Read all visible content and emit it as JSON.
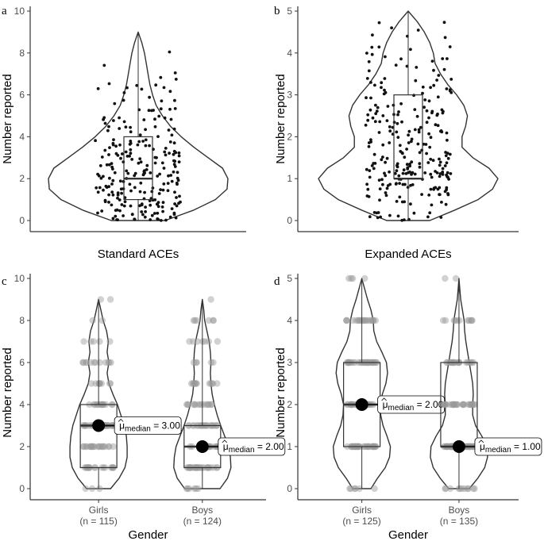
{
  "chart_data": [
    {
      "panel": "a",
      "type": "violin",
      "xlabel": "Standard ACEs",
      "ylabel": "Number reported",
      "ylim": [
        0,
        10
      ],
      "yticks": [
        "0",
        "2",
        "4",
        "6",
        "8",
        "10"
      ],
      "groups": [
        {
          "name": "",
          "n": 240,
          "min": 0,
          "q1": 1,
          "median": 2,
          "q3": 4,
          "max": 9,
          "density": [
            [
              0,
              0.3
            ],
            [
              0.5,
              0.62
            ],
            [
              1,
              0.86
            ],
            [
              1.5,
              0.99
            ],
            [
              2,
              1.0
            ],
            [
              2.5,
              0.94
            ],
            [
              3,
              0.78
            ],
            [
              3.5,
              0.62
            ],
            [
              4,
              0.48
            ],
            [
              4.5,
              0.36
            ],
            [
              5,
              0.27
            ],
            [
              5.5,
              0.2
            ],
            [
              6,
              0.16
            ],
            [
              6.5,
              0.13
            ],
            [
              7,
              0.11
            ],
            [
              7.5,
              0.09
            ],
            [
              8,
              0.07
            ],
            [
              8.5,
              0.04
            ],
            [
              9,
              0.0
            ]
          ]
        }
      ],
      "points": "jittered raw observations (integers 0–9)"
    },
    {
      "panel": "b",
      "type": "violin",
      "xlabel": "Expanded ACEs",
      "ylabel": "Number reported",
      "ylim": [
        0,
        5
      ],
      "yticks": [
        "0",
        "1",
        "2",
        "3",
        "4",
        "5"
      ],
      "groups": [
        {
          "name": "",
          "n": 260,
          "min": 0,
          "q1": 1,
          "median": 1,
          "q3": 3,
          "max": 5,
          "density": [
            [
              0,
              0.24
            ],
            [
              0.25,
              0.52
            ],
            [
              0.5,
              0.78
            ],
            [
              0.75,
              0.94
            ],
            [
              1,
              1.0
            ],
            [
              1.25,
              0.9
            ],
            [
              1.5,
              0.72
            ],
            [
              1.75,
              0.6
            ],
            [
              2,
              0.6
            ],
            [
              2.25,
              0.64
            ],
            [
              2.5,
              0.66
            ],
            [
              2.75,
              0.62
            ],
            [
              3,
              0.54
            ],
            [
              3.25,
              0.44
            ],
            [
              3.5,
              0.36
            ],
            [
              3.75,
              0.3
            ],
            [
              4,
              0.28
            ],
            [
              4.25,
              0.24
            ],
            [
              4.5,
              0.18
            ],
            [
              4.75,
              0.1
            ],
            [
              5,
              0.0
            ]
          ]
        }
      ],
      "points": "jittered raw observations"
    },
    {
      "panel": "c",
      "type": "violin",
      "xlabel": "Gender",
      "ylabel": "Number reported",
      "ylim": [
        0,
        10
      ],
      "yticks": [
        "0",
        "2",
        "4",
        "6",
        "8",
        "10"
      ],
      "groups": [
        {
          "name": "Girls",
          "n_label": "(n = 115)",
          "min": 0,
          "q1": 1,
          "median": 3,
          "q3": 4,
          "max": 9,
          "median_label": "3.00",
          "density": [
            [
              0,
              0.42
            ],
            [
              0.5,
              0.72
            ],
            [
              1,
              0.92
            ],
            [
              1.5,
              1.0
            ],
            [
              2,
              1.0
            ],
            [
              2.5,
              0.97
            ],
            [
              3,
              0.9
            ],
            [
              3.5,
              0.78
            ],
            [
              4,
              0.66
            ],
            [
              4.5,
              0.5
            ],
            [
              5,
              0.36
            ],
            [
              5.5,
              0.3
            ],
            [
              6,
              0.36
            ],
            [
              6.5,
              0.3
            ],
            [
              7,
              0.34
            ],
            [
              7.5,
              0.28
            ],
            [
              8,
              0.16
            ],
            [
              8.5,
              0.08
            ],
            [
              9,
              0.0
            ]
          ]
        },
        {
          "name": "Boys",
          "n_label": "(n = 124)",
          "min": 0,
          "q1": 1,
          "median": 2,
          "q3": 3,
          "max": 9,
          "median_label": "2.00",
          "density": [
            [
              0,
              0.62
            ],
            [
              0.5,
              0.88
            ],
            [
              1,
              1.0
            ],
            [
              1.5,
              0.98
            ],
            [
              2,
              0.92
            ],
            [
              2.5,
              0.78
            ],
            [
              3,
              0.64
            ],
            [
              3.5,
              0.52
            ],
            [
              4,
              0.42
            ],
            [
              4.5,
              0.34
            ],
            [
              5,
              0.3
            ],
            [
              5.5,
              0.28
            ],
            [
              6,
              0.3
            ],
            [
              6.5,
              0.28
            ],
            [
              7,
              0.24
            ],
            [
              7.5,
              0.16
            ],
            [
              8,
              0.08
            ],
            [
              8.5,
              0.05
            ],
            [
              9,
              0.0
            ]
          ]
        }
      ],
      "annotation_prefix": "μ",
      "annotation_sub": "median",
      "annotation_sep": " = "
    },
    {
      "panel": "d",
      "type": "violin",
      "xlabel": "Gender",
      "ylabel": "Number reported",
      "ylim": [
        0,
        5
      ],
      "yticks": [
        "0",
        "1",
        "2",
        "3",
        "4",
        "5"
      ],
      "groups": [
        {
          "name": "Girls",
          "n_label": "(n = 125)",
          "min": 0,
          "q1": 1,
          "median": 2,
          "q3": 3,
          "max": 5,
          "median_label": "2.00",
          "density": [
            [
              0,
              0.32
            ],
            [
              0.25,
              0.55
            ],
            [
              0.5,
              0.82
            ],
            [
              0.75,
              0.97
            ],
            [
              1,
              1.0
            ],
            [
              1.25,
              0.88
            ],
            [
              1.5,
              0.74
            ],
            [
              1.75,
              0.66
            ],
            [
              2,
              0.64
            ],
            [
              2.25,
              0.72
            ],
            [
              2.5,
              0.84
            ],
            [
              2.75,
              0.9
            ],
            [
              3,
              0.86
            ],
            [
              3.25,
              0.7
            ],
            [
              3.5,
              0.52
            ],
            [
              3.75,
              0.42
            ],
            [
              4,
              0.4
            ],
            [
              4.25,
              0.32
            ],
            [
              4.5,
              0.2
            ],
            [
              4.75,
              0.1
            ],
            [
              5,
              0.0
            ]
          ]
        },
        {
          "name": "Boys",
          "n_label": "(n = 135)",
          "min": 0,
          "q1": 1,
          "median": 1,
          "q3": 3,
          "max": 5,
          "median_label": "1.00",
          "density": [
            [
              0,
              0.36
            ],
            [
              0.25,
              0.66
            ],
            [
              0.5,
              0.9
            ],
            [
              0.75,
              1.0
            ],
            [
              1,
              0.98
            ],
            [
              1.25,
              0.8
            ],
            [
              1.5,
              0.58
            ],
            [
              1.75,
              0.48
            ],
            [
              2,
              0.48
            ],
            [
              2.25,
              0.5
            ],
            [
              2.5,
              0.48
            ],
            [
              2.75,
              0.42
            ],
            [
              3,
              0.36
            ],
            [
              3.25,
              0.3
            ],
            [
              3.5,
              0.24
            ],
            [
              3.75,
              0.2
            ],
            [
              4,
              0.18
            ],
            [
              4.25,
              0.12
            ],
            [
              4.5,
              0.06
            ],
            [
              4.75,
              0.03
            ],
            [
              5,
              0.0
            ]
          ]
        }
      ],
      "annotation_prefix": "μ",
      "annotation_sub": "median",
      "annotation_sep": " = "
    }
  ],
  "colors": {
    "violin_stroke": "#333333",
    "box_stroke": "#333333",
    "axis": "#333333",
    "jitter_ab": "#111111",
    "jitter_cd": "#9a9a9a",
    "median_dot": "#000000"
  }
}
